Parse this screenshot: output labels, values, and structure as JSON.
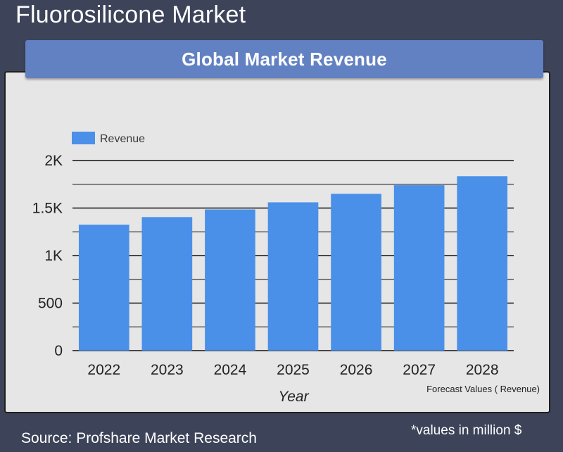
{
  "page": {
    "title": "Fluorosilicone Market",
    "banner": "Global Market Revenue",
    "source": "Source: Profshare Market Research",
    "note": "*values in million $"
  },
  "colors": {
    "background": "#3d4459",
    "banner": "#6281c2",
    "card": "#e6e6e6",
    "bar": "#4a90e8"
  },
  "chart_data": {
    "type": "bar",
    "categories": [
      "2022",
      "2023",
      "2024",
      "2025",
      "2026",
      "2027",
      "2028"
    ],
    "series": [
      {
        "name": "Revenue",
        "values": [
          1325,
          1405,
          1485,
          1560,
          1650,
          1740,
          1835
        ]
      }
    ],
    "xlabel": "Year",
    "ylabel": "",
    "ylim": [
      0,
      2000
    ],
    "yticks": [
      0,
      500,
      1000,
      1500,
      2000
    ],
    "ytick_labels": [
      "0",
      "500",
      "1K",
      "1.5K",
      "2K"
    ],
    "annotation": "Forecast Values ( Revenue)",
    "legend": "top-left",
    "grid": true
  }
}
